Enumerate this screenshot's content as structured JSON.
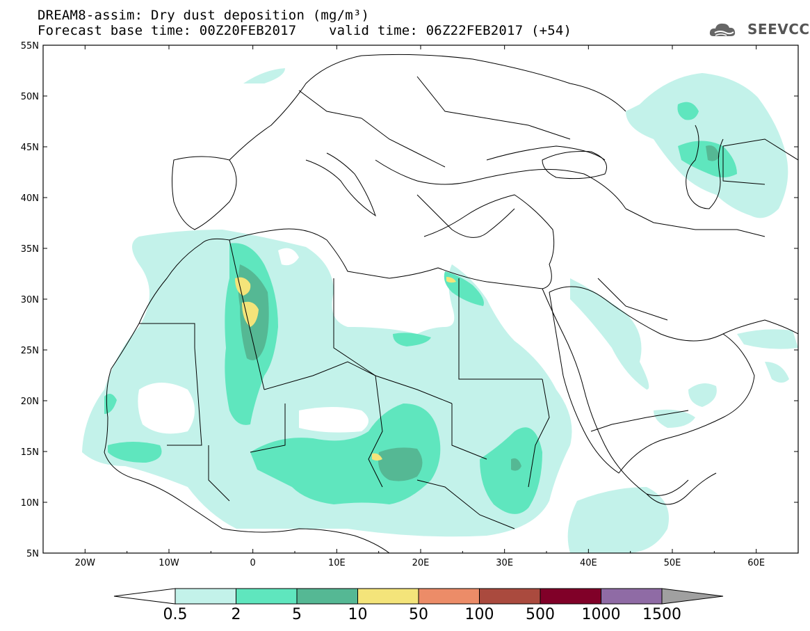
{
  "header": {
    "title_line1": "DREAM8-assim: Dry dust deposition (mg/m³)",
    "title_line2": "Forecast base time: 00Z20FEB2017    valid time: 06Z22FEB2017 (+54)"
  },
  "logo": {
    "text": "SEEVCCC",
    "icon": "cloud-logo-icon"
  },
  "map": {
    "projection": "equirectangular",
    "lon_range": [
      -25,
      65
    ],
    "lat_range": [
      5,
      55
    ],
    "lat_ticks": [
      "55N",
      "50N",
      "45N",
      "40N",
      "35N",
      "30N",
      "25N",
      "20N",
      "15N",
      "10N",
      "5N"
    ],
    "lon_ticks": [
      "20W",
      "10W",
      "0",
      "10E",
      "20E",
      "30E",
      "40E",
      "50E",
      "60E"
    ]
  },
  "colorbar": {
    "labels": [
      "0.5",
      "2",
      "5",
      "10",
      "50",
      "100",
      "500",
      "1000",
      "1500"
    ],
    "colors": [
      "#c3f2ea",
      "#5fe6be",
      "#55b894",
      "#f4e47a",
      "#ec8c68",
      "#aa4a3e",
      "#800028",
      "#8f6ba5"
    ],
    "under_color": "#ffffff",
    "over_color": "#a0a0a0"
  },
  "legend_note": "Dust deposition"
}
